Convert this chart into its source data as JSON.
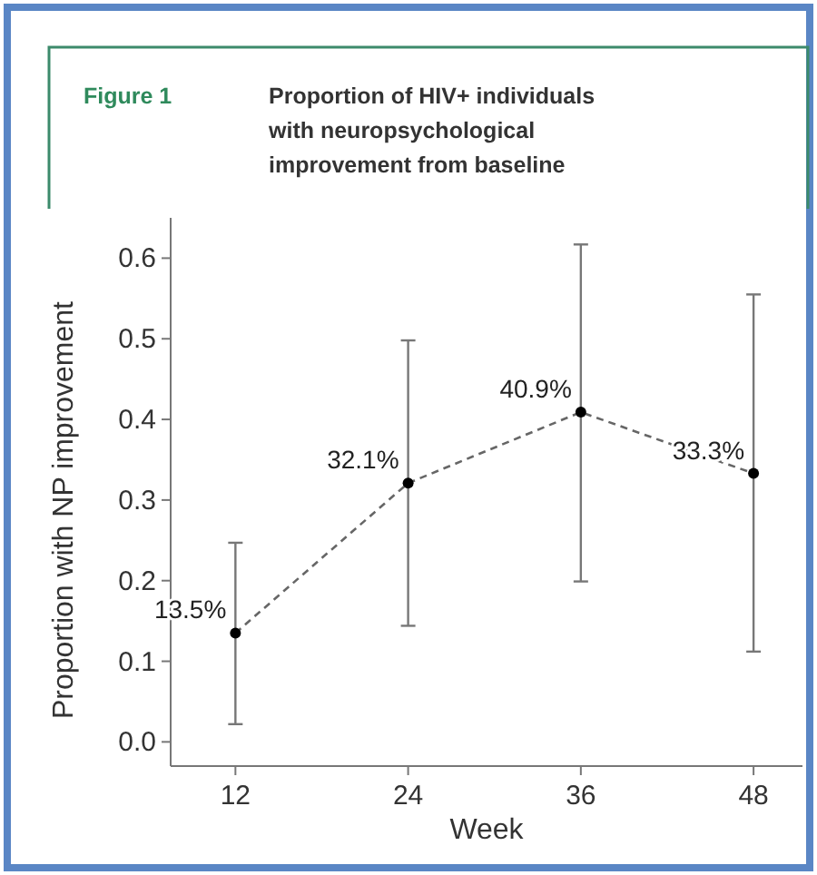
{
  "chart_data": {
    "type": "line",
    "title": "Proportion of HIV+ individuals with neuropsychological improvement from baseline",
    "annotations": [
      "Figure 1"
    ],
    "xlabel": "Week",
    "ylabel": "Proportion with NP improvement",
    "x": [
      12,
      24,
      36,
      48
    ],
    "series": [
      {
        "color": "#666666",
        "values": [
          0.135,
          0.321,
          0.409,
          0.333
        ],
        "errors": [
          [
            0.022,
            0.247
          ],
          [
            0.144,
            0.498
          ],
          [
            0.199,
            0.617
          ],
          [
            0.112,
            0.555
          ]
        ],
        "value_labels": [
          "13.5%",
          "32.1%",
          "40.9%",
          "33.3%"
        ]
      }
    ],
    "xlim": [
      7.5,
      51.4
    ],
    "xticks": [
      12,
      24,
      36,
      48
    ],
    "ylim": [
      -0.03,
      0.65
    ],
    "yticks": [
      {
        "value": 0,
        "label": "0.0"
      },
      0.1,
      0.2,
      0.3,
      0.4,
      0.5,
      0.6
    ],
    "marker": "circle",
    "line_style": "dashed",
    "grid": false
  }
}
